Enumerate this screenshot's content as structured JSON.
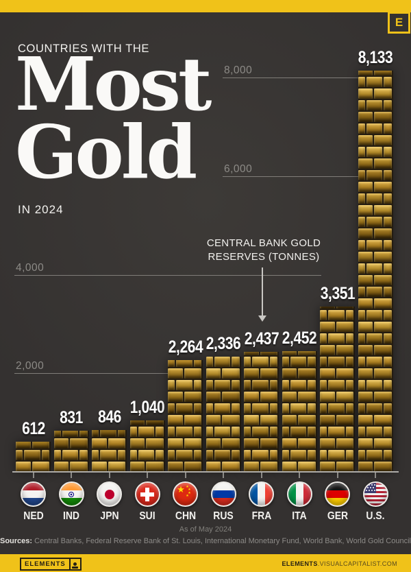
{
  "page": {
    "badge_letter": "E",
    "kicker": "COUNTRIES WITH THE",
    "title_line1": "Most",
    "title_line2": "Gold",
    "subtitle": "IN 2024",
    "annotation_line1": "CENTRAL BANK GOLD",
    "annotation_line2": "RESERVES (TONNES)",
    "as_of": "As of May 2024",
    "sources_label": "Sources:",
    "sources_text": " Central Banks, Federal Reserve Bank of St. Louis, International Monetary Fund, World Bank, World Gold Council",
    "footer_brand": "ELEMENTS",
    "footer_url_bold": "ELEMENTS",
    "footer_url_rest": ".VISUALCAPITALIST.COM",
    "colors": {
      "accent_yellow": "#F0C219",
      "background": "#343130",
      "text_light": "#f2f1ee",
      "gridline_gray": "#8d8b87",
      "gold_bright": "#e0b44e",
      "gold_dark": "#5f430e"
    }
  },
  "chart_data": {
    "type": "bar",
    "title": "Countries with the Most Gold in 2024",
    "subtitle_annotation": "Central Bank Gold Reserves (tonnes)",
    "as_of": "As of May 2024",
    "xlabel": "",
    "ylabel": "Central bank gold reserves (tonnes)",
    "ylim": [
      0,
      8500
    ],
    "grid": "partial horizontal gridlines",
    "legend_position": "none",
    "categories": [
      "NED",
      "IND",
      "JPN",
      "SUI",
      "CHN",
      "RUS",
      "FRA",
      "ITA",
      "GER",
      "U.S."
    ],
    "flag_icons": [
      "netherlands-flag",
      "india-flag",
      "japan-flag",
      "switzerland-flag",
      "china-flag",
      "russia-flag",
      "france-flag",
      "italy-flag",
      "germany-flag",
      "united-states-flag"
    ],
    "values": [
      612,
      831,
      846,
      1040,
      2264,
      2336,
      2437,
      2452,
      3351,
      8133
    ],
    "value_labels": [
      "612",
      "831",
      "846",
      "1,040",
      "2,264",
      "2,336",
      "2,437",
      "2,452",
      "3,351",
      "8,133"
    ],
    "gridline_values": [
      2000,
      4000,
      6000,
      8000
    ],
    "gridline_labels": [
      "2,000",
      "4,000",
      "6,000",
      "8,000"
    ]
  }
}
